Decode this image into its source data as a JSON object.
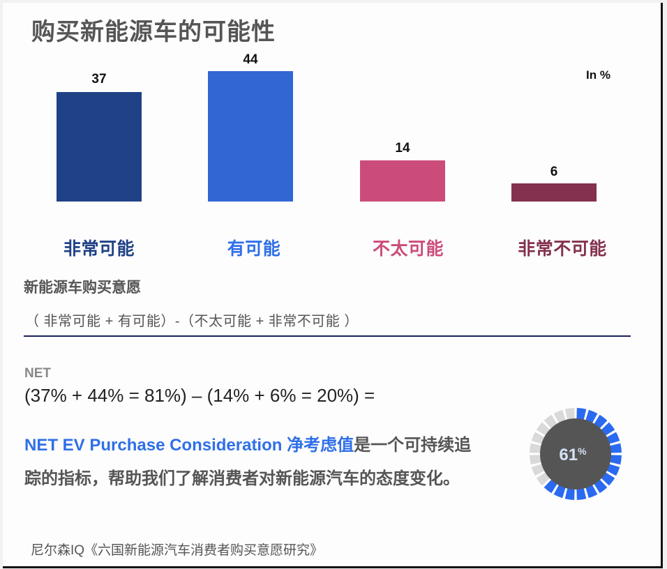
{
  "header": {
    "title": "购买新能源车的可能性",
    "unit_label": "In %"
  },
  "chart_data": {
    "type": "bar",
    "title": "购买新能源车的可能性",
    "unit": "In %",
    "xlabel": "",
    "ylabel": "",
    "ylim": [
      0,
      50
    ],
    "grid": false,
    "legend": "none",
    "categories": [
      "非常可能",
      "有可能",
      "不太可能",
      "非常不可能"
    ],
    "values": [
      37,
      44,
      14,
      6
    ],
    "colors": [
      "#1f4185",
      "#3266d3",
      "#cb4c7a",
      "#84304f"
    ]
  },
  "bars": [
    {
      "label": "非常可能",
      "value": "37",
      "color": "#1f4185",
      "label_color": "#1f4185"
    },
    {
      "label": "有可能",
      "value": "44",
      "color": "#3266d3",
      "label_color": "#2f6fe8"
    },
    {
      "label": "不太可能",
      "value": "14",
      "color": "#cb4c7a",
      "label_color": "#cb4c7a"
    },
    {
      "label": "非常不可能",
      "value": "6",
      "color": "#84304f",
      "label_color": "#84304f"
    }
  ],
  "definition": {
    "heading": "新能源车购买意愿",
    "formula": "（ 非常可能 + 有可能）-（不太可能 + 非常不可能 ）"
  },
  "net": {
    "label": "NET",
    "formula": "(37% + 44% = 81%) – (14% + 6% = 20%) =",
    "result_value": "61",
    "result_suffix": "%",
    "result_percent": 61,
    "dial_segments": 24,
    "dial_fill_color": "#2a6af0",
    "dial_empty_color": "#d9d9d9",
    "dial_center_color": "#555555",
    "dial_text_color": "#d6e0f5"
  },
  "description": {
    "accent": "NET EV Purchase Consideration 净考虑值",
    "body": "是一个可持续追踪的指标，帮助我们了解消费者对新能源汽车的态度变化。"
  },
  "source": "尼尔森IQ《六国新能源汽车消费者购买意愿研究》"
}
